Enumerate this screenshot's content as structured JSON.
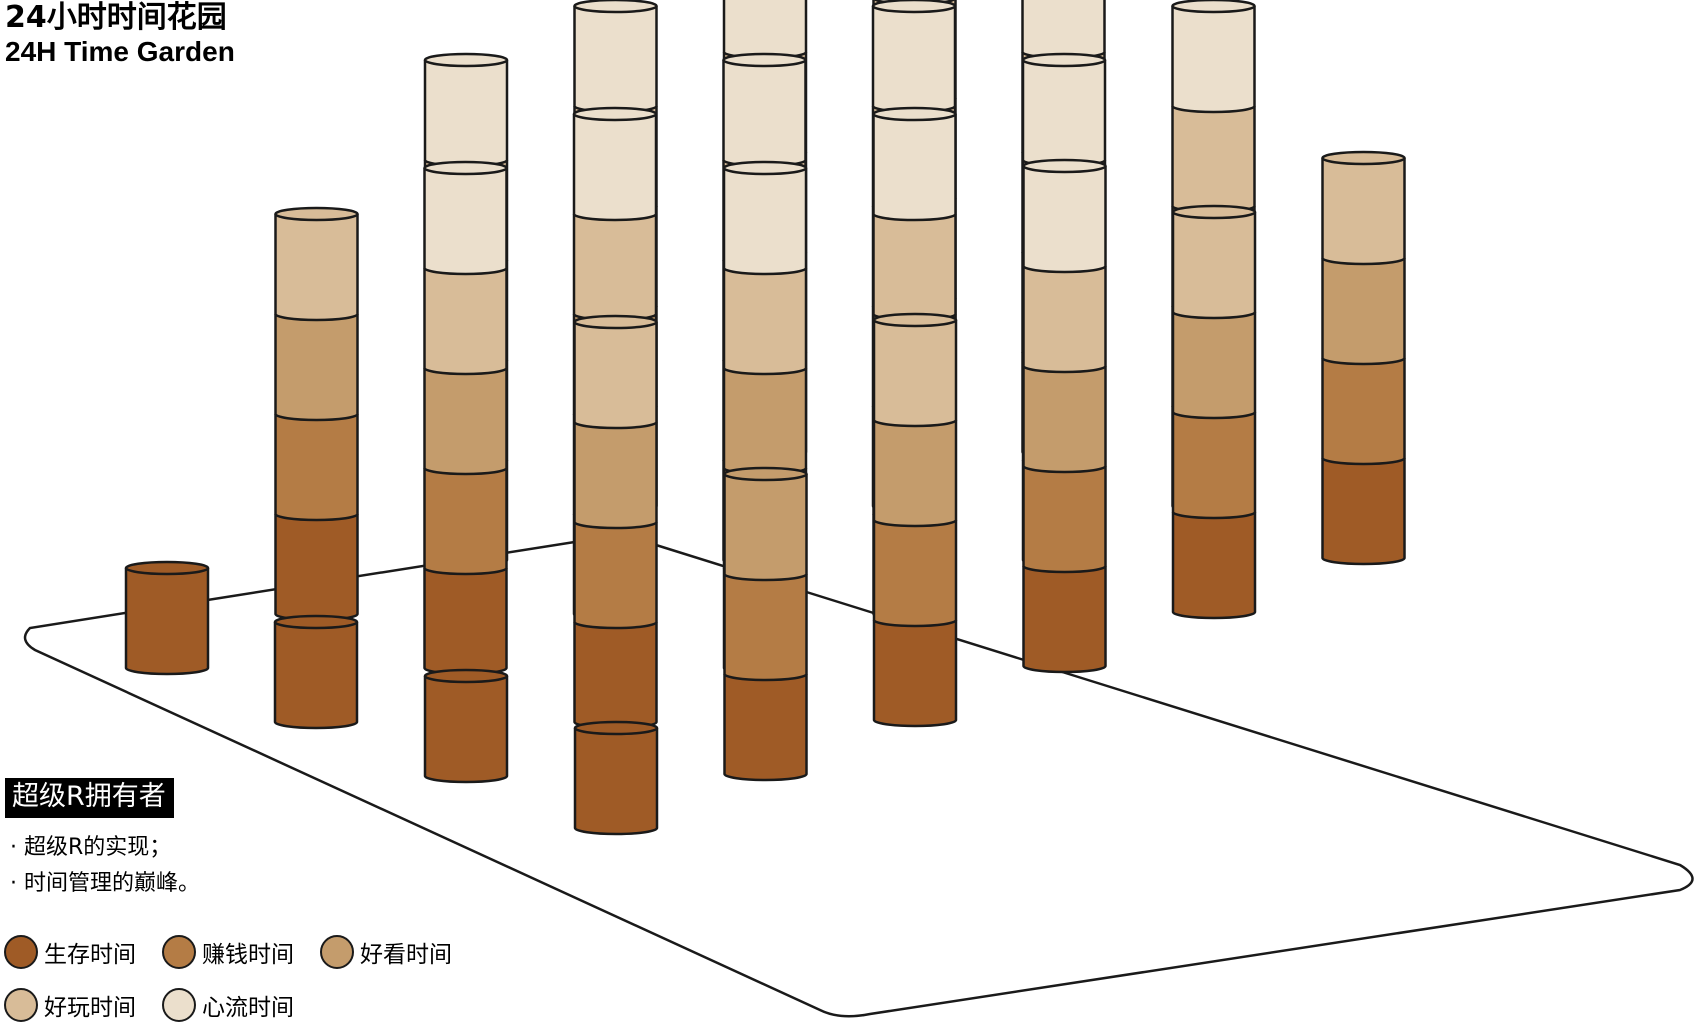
{
  "header": {
    "title_zh": "24小时时间花园",
    "title_en": "24H Time Garden"
  },
  "category_badge": "超级R拥有者",
  "bullets": [
    "· 超级R的实现；",
    "· 时间管理的巅峰。"
  ],
  "legend": [
    {
      "label": "生存时间",
      "color": "#9f5b26"
    },
    {
      "label": "赚钱时间",
      "color": "#b47c45"
    },
    {
      "label": "好看时间",
      "color": "#c49c6c"
    },
    {
      "label": "好玩时间",
      "color": "#d8bc98"
    },
    {
      "label": "心流时间",
      "color": "#ebdfcc"
    }
  ],
  "diagram": {
    "description_colors": {
      "outline": "#1a1a1a",
      "platform_fill": "#ffffff"
    },
    "rows": [
      {
        "stacks": [
          1,
          4,
          5,
          5,
          5,
          5
        ]
      },
      {
        "stacks": [
          1,
          5,
          5,
          5,
          5,
          5
        ]
      },
      {
        "stacks": [
          1,
          4,
          5,
          5,
          5,
          5
        ]
      },
      {
        "stacks": [
          1,
          3,
          4,
          5,
          4,
          4
        ]
      }
    ]
  }
}
